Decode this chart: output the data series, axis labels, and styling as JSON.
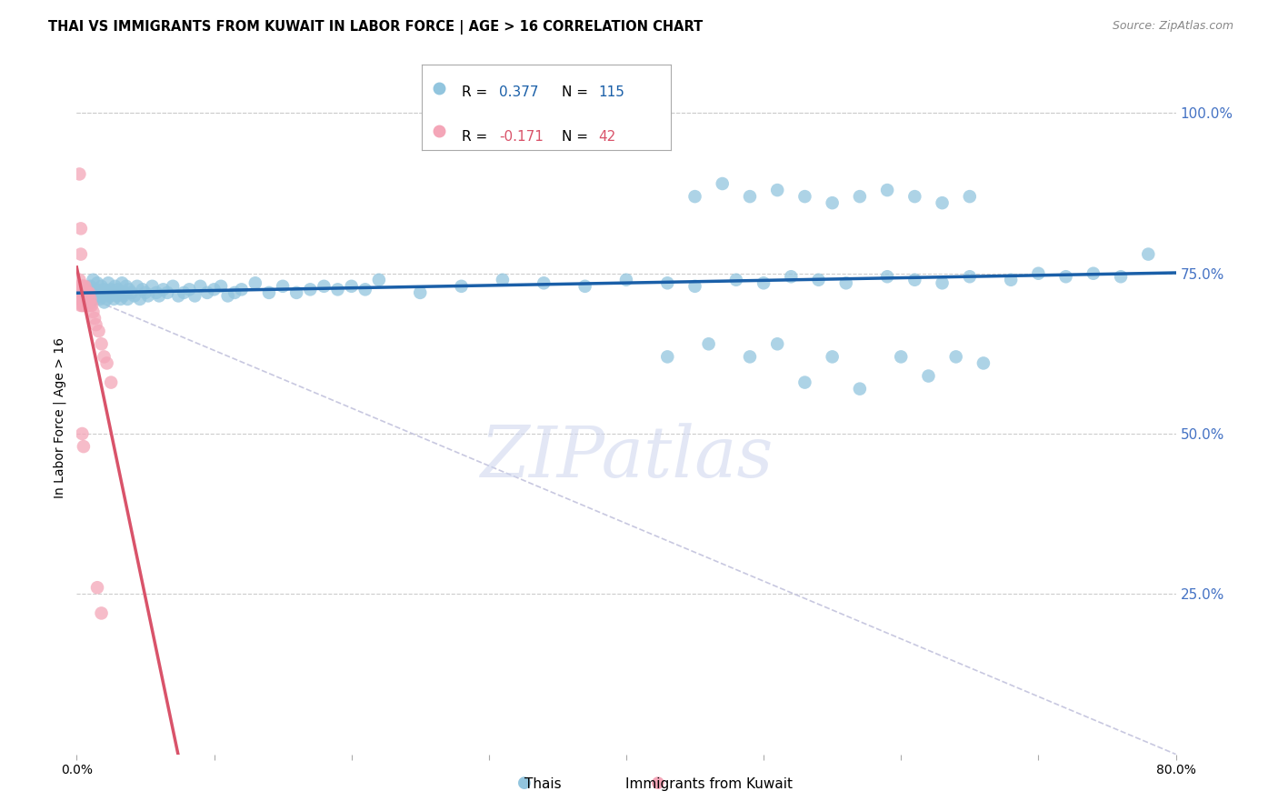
{
  "title": "THAI VS IMMIGRANTS FROM KUWAIT IN LABOR FORCE | AGE > 16 CORRELATION CHART",
  "source": "Source: ZipAtlas.com",
  "ylabel": "In Labor Force | Age > 16",
  "ytick_labels": [
    "100.0%",
    "75.0%",
    "50.0%",
    "25.0%"
  ],
  "ytick_values": [
    1.0,
    0.75,
    0.5,
    0.25
  ],
  "xmin": 0.0,
  "xmax": 0.8,
  "ymin": 0.0,
  "ymax": 1.05,
  "blue_R": 0.377,
  "blue_N": 115,
  "pink_R": -0.171,
  "pink_N": 42,
  "legend_label_blue": "Thais",
  "legend_label_pink": "Immigrants from Kuwait",
  "blue_color": "#92c5de",
  "pink_color": "#f4a6b8",
  "blue_line_color": "#1a5fa8",
  "pink_line_color": "#d9536a",
  "diagonal_color": "#c8c8e0",
  "watermark": "ZIPatlas",
  "right_tick_color": "#4472c4",
  "blue_x": [
    0.005,
    0.007,
    0.008,
    0.009,
    0.01,
    0.01,
    0.011,
    0.012,
    0.013,
    0.014,
    0.015,
    0.015,
    0.016,
    0.017,
    0.018,
    0.019,
    0.02,
    0.02,
    0.021,
    0.022,
    0.023,
    0.024,
    0.025,
    0.026,
    0.027,
    0.028,
    0.029,
    0.03,
    0.031,
    0.032,
    0.033,
    0.034,
    0.035,
    0.036,
    0.037,
    0.038,
    0.04,
    0.042,
    0.044,
    0.046,
    0.048,
    0.05,
    0.052,
    0.055,
    0.058,
    0.06,
    0.063,
    0.066,
    0.07,
    0.074,
    0.078,
    0.082,
    0.086,
    0.09,
    0.095,
    0.1,
    0.105,
    0.11,
    0.115,
    0.12,
    0.13,
    0.14,
    0.15,
    0.16,
    0.17,
    0.18,
    0.19,
    0.2,
    0.21,
    0.22,
    0.25,
    0.28,
    0.31,
    0.34,
    0.37,
    0.4,
    0.43,
    0.45,
    0.48,
    0.5,
    0.52,
    0.54,
    0.56,
    0.59,
    0.61,
    0.63,
    0.65,
    0.68,
    0.7,
    0.72,
    0.74,
    0.76,
    0.78,
    0.43,
    0.46,
    0.49,
    0.51,
    0.53,
    0.55,
    0.57,
    0.6,
    0.62,
    0.64,
    0.66,
    0.45,
    0.47,
    0.49,
    0.51,
    0.53,
    0.55,
    0.57,
    0.59,
    0.61,
    0.63,
    0.65
  ],
  "blue_y": [
    0.72,
    0.71,
    0.725,
    0.715,
    0.73,
    0.705,
    0.72,
    0.74,
    0.71,
    0.725,
    0.715,
    0.735,
    0.72,
    0.71,
    0.73,
    0.715,
    0.725,
    0.705,
    0.72,
    0.71,
    0.735,
    0.715,
    0.725,
    0.72,
    0.71,
    0.73,
    0.715,
    0.725,
    0.72,
    0.71,
    0.735,
    0.715,
    0.72,
    0.73,
    0.71,
    0.725,
    0.72,
    0.715,
    0.73,
    0.71,
    0.725,
    0.72,
    0.715,
    0.73,
    0.72,
    0.715,
    0.725,
    0.72,
    0.73,
    0.715,
    0.72,
    0.725,
    0.715,
    0.73,
    0.72,
    0.725,
    0.73,
    0.715,
    0.72,
    0.725,
    0.735,
    0.72,
    0.73,
    0.72,
    0.725,
    0.73,
    0.725,
    0.73,
    0.725,
    0.74,
    0.72,
    0.73,
    0.74,
    0.735,
    0.73,
    0.74,
    0.735,
    0.73,
    0.74,
    0.735,
    0.745,
    0.74,
    0.735,
    0.745,
    0.74,
    0.735,
    0.745,
    0.74,
    0.75,
    0.745,
    0.75,
    0.745,
    0.78,
    0.62,
    0.64,
    0.62,
    0.64,
    0.58,
    0.62,
    0.57,
    0.62,
    0.59,
    0.62,
    0.61,
    0.87,
    0.89,
    0.87,
    0.88,
    0.87,
    0.86,
    0.87,
    0.88,
    0.87,
    0.86,
    0.87
  ],
  "pink_x": [
    0.001,
    0.002,
    0.002,
    0.002,
    0.003,
    0.003,
    0.003,
    0.003,
    0.004,
    0.004,
    0.004,
    0.005,
    0.005,
    0.005,
    0.005,
    0.006,
    0.006,
    0.006,
    0.007,
    0.007,
    0.008,
    0.008,
    0.009,
    0.009,
    0.01,
    0.01,
    0.011,
    0.012,
    0.013,
    0.014,
    0.016,
    0.018,
    0.02,
    0.022,
    0.025,
    0.002,
    0.003,
    0.003,
    0.004,
    0.005,
    0.015,
    0.018
  ],
  "pink_y": [
    0.72,
    0.73,
    0.71,
    0.74,
    0.72,
    0.7,
    0.73,
    0.71,
    0.72,
    0.7,
    0.73,
    0.72,
    0.7,
    0.73,
    0.71,
    0.72,
    0.7,
    0.73,
    0.71,
    0.72,
    0.7,
    0.72,
    0.71,
    0.72,
    0.7,
    0.71,
    0.7,
    0.69,
    0.68,
    0.67,
    0.66,
    0.64,
    0.62,
    0.61,
    0.58,
    0.905,
    0.82,
    0.78,
    0.5,
    0.48,
    0.26,
    0.22
  ]
}
